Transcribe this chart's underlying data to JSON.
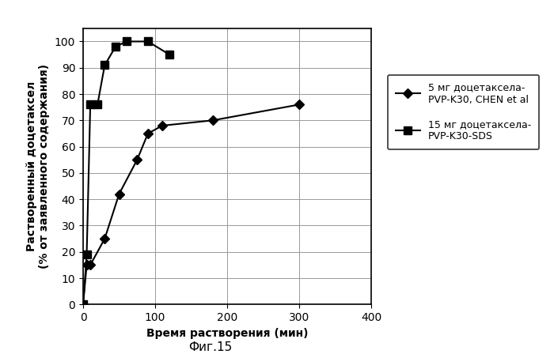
{
  "series1": {
    "label": "5 мг доцетаксела-\nPVP-K30, CHEN et al",
    "x": [
      0,
      5,
      10,
      30,
      50,
      75,
      90,
      110,
      180,
      300
    ],
    "y": [
      0,
      15,
      15,
      25,
      42,
      55,
      65,
      68,
      70,
      76
    ],
    "color": "#000000",
    "marker": "D",
    "markersize": 6,
    "linewidth": 1.5
  },
  "series2": {
    "label": "15 мг доцетаксела-\nPVP-K30-SDS",
    "x": [
      0,
      5,
      10,
      20,
      30,
      45,
      60,
      90,
      120
    ],
    "y": [
      0,
      19,
      76,
      76,
      91,
      98,
      100,
      100,
      95
    ],
    "color": "#000000",
    "marker": "s",
    "markersize": 7,
    "linewidth": 1.5
  },
  "xlabel": "Время растворения (мин)",
  "ylabel": "Растворенный доцетаксел\n(% от заявленного содержания)",
  "xlim": [
    0,
    400
  ],
  "ylim": [
    0,
    105
  ],
  "xticks": [
    0,
    100,
    200,
    300,
    400
  ],
  "yticks": [
    0,
    10,
    20,
    30,
    40,
    50,
    60,
    70,
    80,
    90,
    100
  ],
  "caption": "Фиг.15",
  "background_color": "#ffffff",
  "grid_color": "#999999",
  "legend_fontsize": 9,
  "axis_fontsize": 10,
  "tick_fontsize": 10
}
